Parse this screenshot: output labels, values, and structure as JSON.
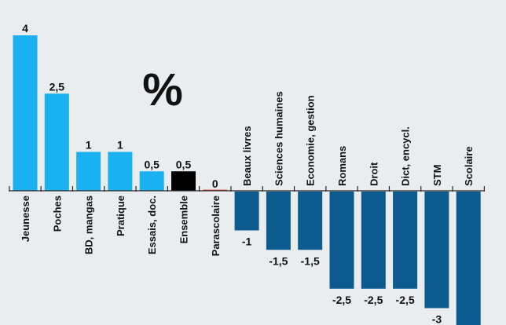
{
  "chart_data": {
    "type": "bar",
    "title": "",
    "xlabel": "",
    "ylabel": "",
    "unit_symbol": "%",
    "ylim": [
      -3.5,
      4.1
    ],
    "categories": [
      "Jeunesse",
      "Poches",
      "BD, mangas",
      "Pratique",
      "Essais, doc.",
      "Ensemble",
      "Parascolaire",
      "Beaux livres",
      "Sciences humaines",
      "Economie, gestion",
      "Romans",
      "Droit",
      "Dict, encycl.",
      "STM",
      "Scolaire"
    ],
    "values": [
      4,
      2.5,
      1,
      1,
      0.5,
      0.5,
      0,
      -1,
      -1.5,
      -1.5,
      -2.5,
      -2.5,
      -2.5,
      -3,
      -3.5
    ],
    "value_labels": [
      "4",
      "2,5",
      "1",
      "1",
      "0,5",
      "0,5",
      "0",
      "-1",
      "-1,5",
      "-1,5",
      "-2,5",
      "-2,5",
      "-2,5",
      "-3",
      ""
    ],
    "colors": {
      "positive": "#1ab1f0",
      "highlight": "#000000",
      "zero": "#e85a4a",
      "negative": "#0d5a8f",
      "axis": "#222222",
      "background": "#e9edf0"
    },
    "highlight_category": "Ensemble",
    "grid": false,
    "legend": "none"
  }
}
